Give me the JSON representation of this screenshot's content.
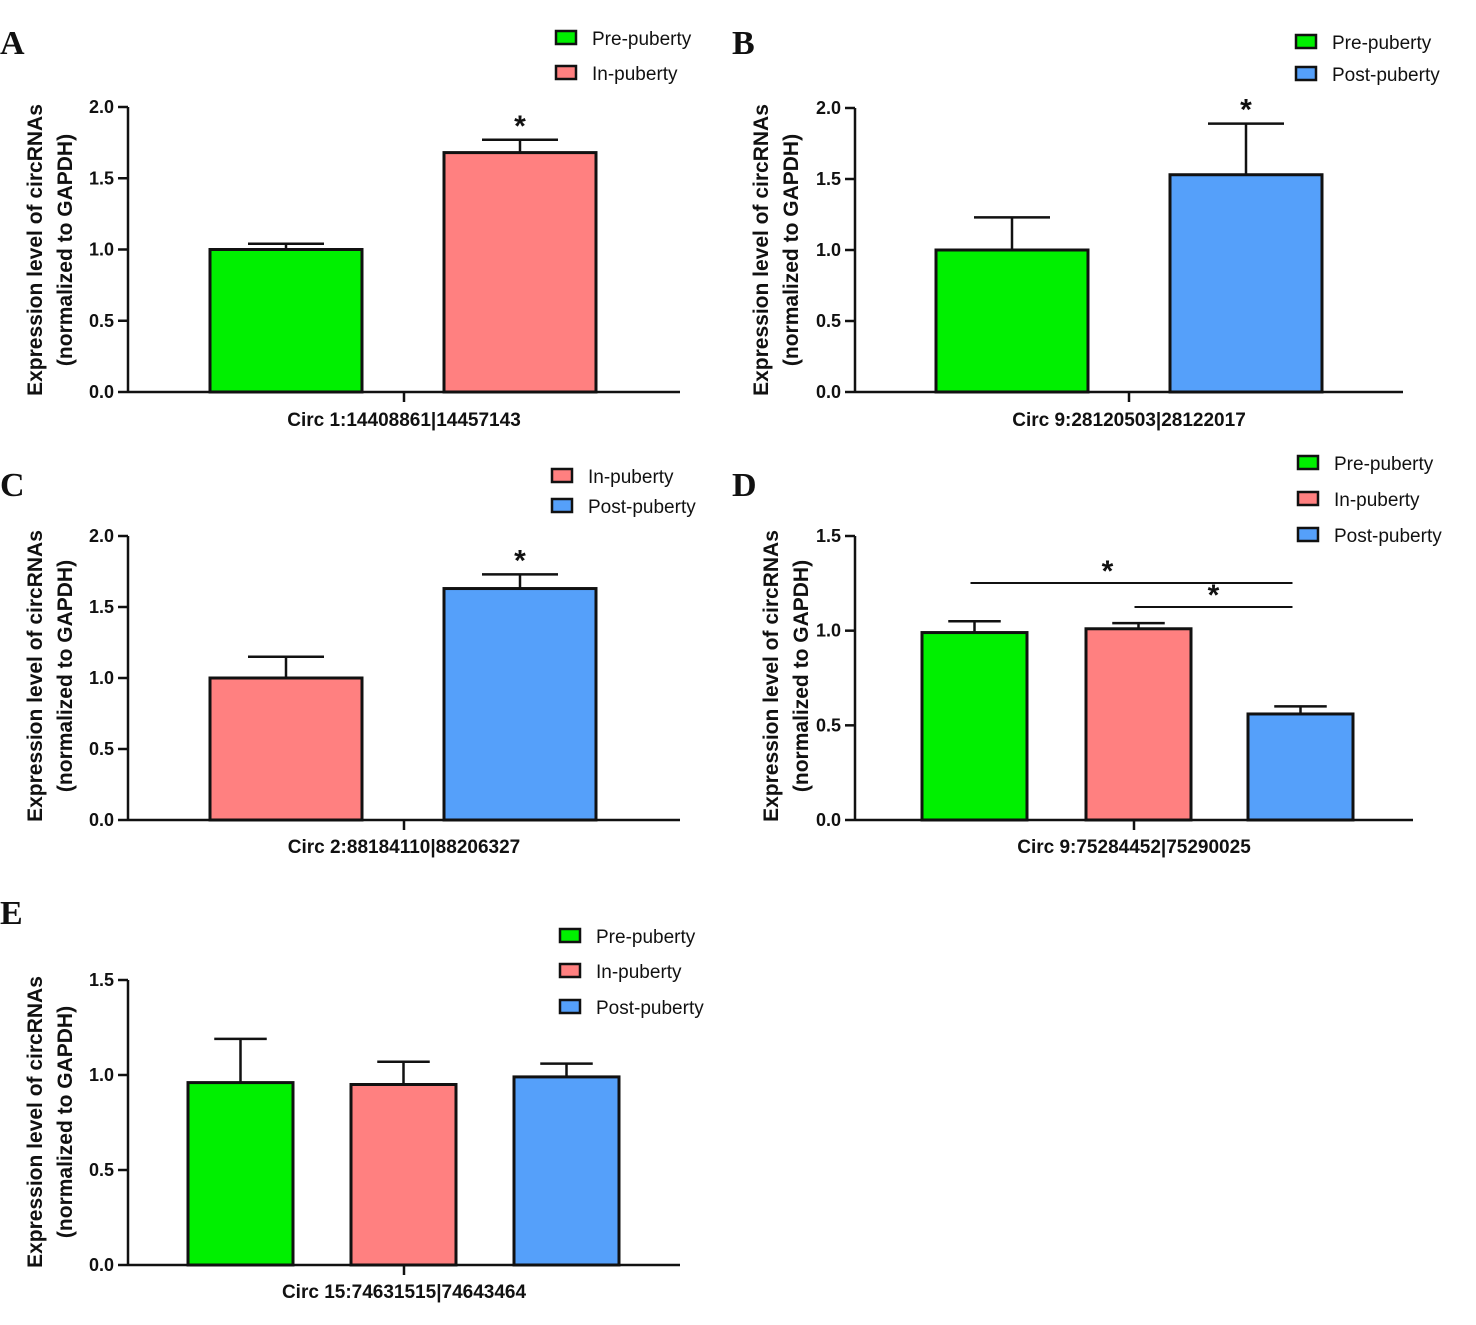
{
  "colors": {
    "pre_puberty": "#00f000",
    "in_puberty": "#ff8080",
    "post_puberty": "#55a0fa",
    "axis": "#111111"
  },
  "chart_data": [
    {
      "panel": "A",
      "type": "bar",
      "ylabel": [
        "Expression level of circRNAs",
        "(normalized to GAPDH)"
      ],
      "xlabel": "Circ 1:14408861|14457143",
      "ylim": [
        0,
        2.0
      ],
      "yticks": [
        "0.0",
        "0.5",
        "1.0",
        "1.5",
        "2.0"
      ],
      "series": [
        {
          "name": "Pre-puberty",
          "color_key": "pre_puberty",
          "value": 1.0,
          "error": 0.04
        },
        {
          "name": "In-puberty",
          "color_key": "in_puberty",
          "value": 1.68,
          "error": 0.09
        }
      ],
      "significance": [
        {
          "bar": 1,
          "label": "*"
        }
      ]
    },
    {
      "panel": "B",
      "type": "bar",
      "ylabel": [
        "Expression level of circRNAs",
        "(normalized to GAPDH)"
      ],
      "xlabel": "Circ 9:28120503|28122017",
      "ylim": [
        0,
        2.0
      ],
      "yticks": [
        "0.0",
        "0.5",
        "1.0",
        "1.5",
        "2.0"
      ],
      "series": [
        {
          "name": "Pre-puberty",
          "color_key": "pre_puberty",
          "value": 1.0,
          "error": 0.23
        },
        {
          "name": "Post-puberty",
          "color_key": "post_puberty",
          "value": 1.53,
          "error": 0.36
        }
      ],
      "significance": [
        {
          "bar": 1,
          "label": "*"
        }
      ]
    },
    {
      "panel": "C",
      "type": "bar",
      "ylabel": [
        "Expression level of circRNAs",
        "(normalized to GAPDH)"
      ],
      "xlabel": "Circ 2:88184110|88206327",
      "ylim": [
        0,
        2.0
      ],
      "yticks": [
        "0.0",
        "0.5",
        "1.0",
        "1.5",
        "2.0"
      ],
      "series": [
        {
          "name": "In-puberty",
          "color_key": "in_puberty",
          "value": 1.0,
          "error": 0.15
        },
        {
          "name": "Post-puberty",
          "color_key": "post_puberty",
          "value": 1.63,
          "error": 0.1
        }
      ],
      "significance": [
        {
          "bar": 1,
          "label": "*"
        }
      ]
    },
    {
      "panel": "D",
      "type": "bar",
      "ylabel": [
        "Expression level of circRNAs",
        "(normalized to GAPDH)"
      ],
      "xlabel": "Circ 9:75284452|75290025",
      "ylim": [
        0,
        1.5
      ],
      "yticks": [
        "0.0",
        "0.5",
        "1.0",
        "1.5"
      ],
      "series": [
        {
          "name": "Pre-puberty",
          "color_key": "pre_puberty",
          "value": 0.99,
          "error": 0.06
        },
        {
          "name": "In-puberty",
          "color_key": "in_puberty",
          "value": 1.01,
          "error": 0.03
        },
        {
          "name": "Post-puberty",
          "color_key": "post_puberty",
          "value": 0.56,
          "error": 0.04
        }
      ],
      "brackets": [
        {
          "from": 0,
          "to": 2,
          "label": "*"
        },
        {
          "from": 1,
          "to": 2,
          "label": "*"
        }
      ]
    },
    {
      "panel": "E",
      "type": "bar",
      "ylabel": [
        "Expression level of circRNAs",
        "(normalized to GAPDH)"
      ],
      "xlabel": "Circ 15:74631515|74643464",
      "ylim": [
        0,
        1.5
      ],
      "yticks": [
        "0.0",
        "0.5",
        "1.0",
        "1.5"
      ],
      "series": [
        {
          "name": "Pre-puberty",
          "color_key": "pre_puberty",
          "value": 0.96,
          "error": 0.23
        },
        {
          "name": "In-puberty",
          "color_key": "in_puberty",
          "value": 0.95,
          "error": 0.12
        },
        {
          "name": "Post-puberty",
          "color_key": "post_puberty",
          "value": 0.99,
          "error": 0.07
        }
      ]
    }
  ]
}
